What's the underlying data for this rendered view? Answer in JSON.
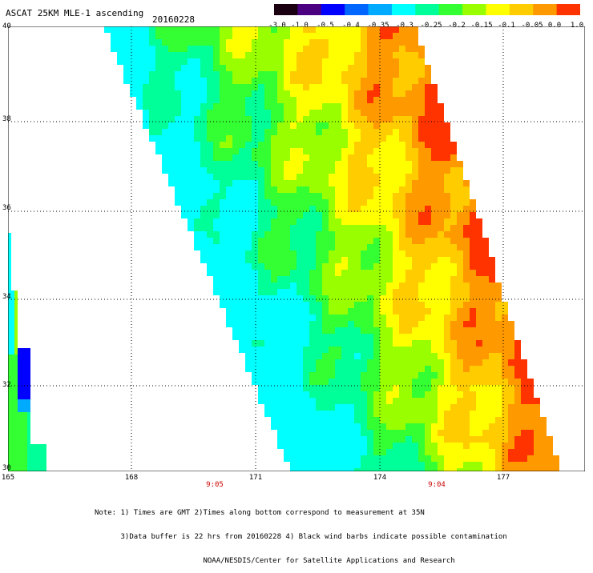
{
  "header": {
    "title": "ASCAT 25KM MLE-1 ascending",
    "date": "20160228"
  },
  "colorbar": {
    "labels": [
      "-3.0",
      "-1.0",
      "-0.5",
      "-0.4",
      "-0.35",
      "-0.3",
      "-0.25",
      "-0.2",
      "-0.15",
      "-0.1",
      "-0.05",
      "0.0",
      "1.0"
    ],
    "colors": [
      "#1a0010",
      "#4b0082",
      "#0000ff",
      "#0066ff",
      "#00aaff",
      "#00ffff",
      "#00ff99",
      "#33ff33",
      "#99ff00",
      "#ffff00",
      "#ffcc00",
      "#ff9900",
      "#ff3300"
    ]
  },
  "map": {
    "lat_labels": [
      "40",
      "38",
      "36",
      "34",
      "32",
      "30"
    ],
    "lon_labels": [
      "165",
      "168",
      "171",
      "174",
      "177"
    ],
    "time_labels": [
      "9:05",
      "9:04"
    ]
  },
  "notes": [
    "Note: 1) Times are GMT 2)Times along bottom correspond to measurement at 35N",
    "      3)Data buffer is 22 hrs from 20160228 4) Black wind barbs indicate possible contamination",
    "                         NOAA/NESDIS/Center for Satellite Applications and Research"
  ]
}
